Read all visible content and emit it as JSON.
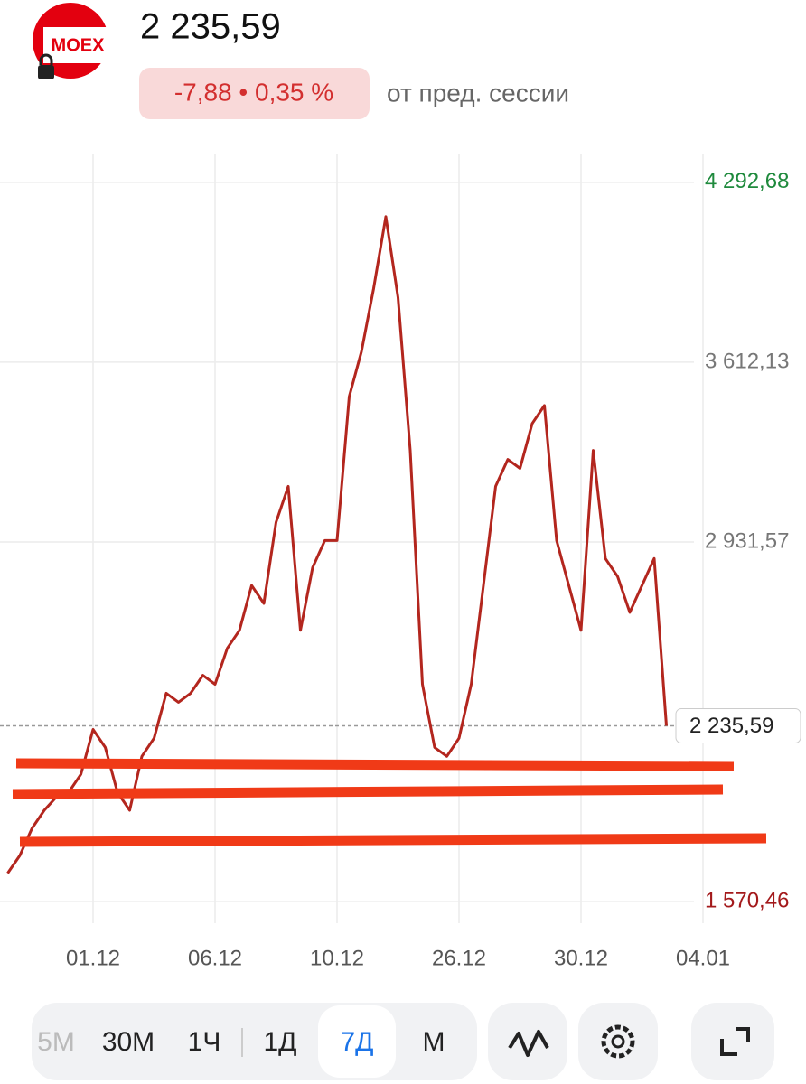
{
  "header": {
    "logo": "MOEX",
    "price": "2 235,59",
    "change": "-7,88 • 0,35 %",
    "change_note": "от пред. сессии"
  },
  "chart_data": {
    "type": "line",
    "color": "#b3261e",
    "categories": [
      null,
      null,
      null,
      null,
      null,
      null,
      null,
      "01.12",
      null,
      null,
      null,
      null,
      null,
      null,
      null,
      null,
      null,
      "06.12",
      null,
      null,
      null,
      null,
      null,
      null,
      null,
      null,
      null,
      "10.12",
      null,
      null,
      null,
      null,
      null,
      null,
      null,
      null,
      null,
      "26.12",
      null,
      null,
      null,
      null,
      null,
      null,
      null,
      null,
      null,
      "30.12",
      null,
      null,
      null,
      null,
      null,
      null,
      null,
      null,
      null,
      "04.01"
    ],
    "values": [
      1678,
      1745,
      1848,
      1916,
      1967,
      1984,
      2052,
      2222,
      2154,
      1984,
      1916,
      2120,
      2189,
      2359,
      2325,
      2359,
      2427,
      2393,
      2529,
      2597,
      2767,
      2699,
      3006,
      3142,
      2597,
      2835,
      2937,
      2937,
      3482,
      3652,
      3891,
      4163,
      3857,
      3278,
      2393,
      2154,
      2120,
      2189,
      2393,
      2767,
      3142,
      3244,
      3210,
      3380,
      3448,
      2937,
      2767,
      2597,
      3278,
      2869,
      2801,
      2665,
      2767,
      2869,
      2235.59,
      null,
      null,
      null
    ],
    "ylim": [
      1488.7,
      4401.6
    ],
    "yticks": [
      {
        "value": 4292.68,
        "label": "4 292,68"
      },
      {
        "value": 3612.13,
        "label": "3 612,13"
      },
      {
        "value": 2931.57,
        "label": "2 931,57"
      },
      {
        "value": 1570.46,
        "label": "1 570,46"
      }
    ],
    "current_price": {
      "value": 2235.59,
      "label": "2 235,59"
    },
    "grid": true
  },
  "toolbar": {
    "intervals": [
      "5M",
      "30M",
      "1Ч",
      "1Д",
      "7Д",
      "М"
    ],
    "selected": 4
  }
}
